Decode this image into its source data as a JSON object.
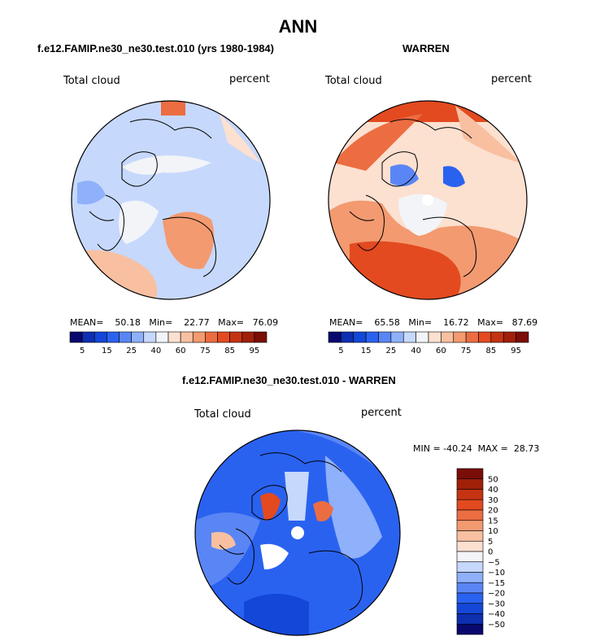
{
  "page_title": "ANN",
  "panels": [
    {
      "title": "f.e12.FAMIP.ne30_ne30.test.010 (yrs 1980-1984)",
      "left_label": "Total cloud",
      "right_label": "percent",
      "stats": {
        "mean_label": "MEAN=",
        "mean": "50.18",
        "min_label": "Min=",
        "min": "22.77",
        "max_label": "Max=",
        "max": "76.09"
      }
    },
    {
      "title": "WARREN",
      "left_label": "Total cloud",
      "right_label": "percent",
      "stats": {
        "mean_label": "MEAN=",
        "mean": "65.58",
        "min_label": "Min=",
        "min": "16.72",
        "max_label": "Max=",
        "max": "87.69"
      }
    },
    {
      "title": "f.e12.FAMIP.ne30_ne30.test.010 - WARREN",
      "left_label": "Total cloud",
      "right_label": "percent",
      "minmax": "MIN = -40.24  MAX =  28.73"
    }
  ],
  "colors": {
    "abs_scale": [
      "#08086e",
      "#0d2fb0",
      "#1447d8",
      "#2a62f0",
      "#5a86f5",
      "#8fb0fa",
      "#c6d8fc",
      "#f2f4f7",
      "#fce0d0",
      "#f8c0a0",
      "#f39a70",
      "#ec6d42",
      "#e34a20",
      "#c43412",
      "#a0200a",
      "#7a0e06"
    ],
    "diff_scale": [
      "#08086e",
      "#0d2fb0",
      "#1447d8",
      "#2a62f0",
      "#5a86f5",
      "#8fb0fa",
      "#c6d8fc",
      "#f2f4f7",
      "#fce0d0",
      "#f8c0a0",
      "#f39a70",
      "#ec6d42",
      "#e34a20",
      "#c43412",
      "#a0200a",
      "#7a0e06"
    ]
  },
  "chart_data": [
    {
      "type": "heatmap",
      "projection": "north polar stereographic",
      "title": "f.e12.FAMIP.ne30_ne30.test.010 (yrs 1980-1984)",
      "variable": "Total cloud",
      "units": "percent",
      "colorbar_ticks": [
        "5",
        "15",
        "25",
        "40",
        "60",
        "75",
        "85",
        "95"
      ],
      "mean": 50.18,
      "min": 22.77,
      "max": 76.09
    },
    {
      "type": "heatmap",
      "projection": "north polar stereographic",
      "title": "WARREN",
      "variable": "Total cloud",
      "units": "percent",
      "colorbar_ticks": [
        "5",
        "15",
        "25",
        "40",
        "60",
        "75",
        "85",
        "95"
      ],
      "mean": 65.58,
      "min": 16.72,
      "max": 87.69
    },
    {
      "type": "heatmap",
      "projection": "north polar stereographic",
      "title": "f.e12.FAMIP.ne30_ne30.test.010 - WARREN",
      "variable": "Total cloud",
      "units": "percent",
      "colorbar_ticks": [
        "50",
        "40",
        "30",
        "20",
        "15",
        "10",
        "5",
        "0",
        "−5",
        "−10",
        "−15",
        "−20",
        "−30",
        "−40",
        "−50"
      ],
      "min": -40.24,
      "max": 28.73
    }
  ]
}
